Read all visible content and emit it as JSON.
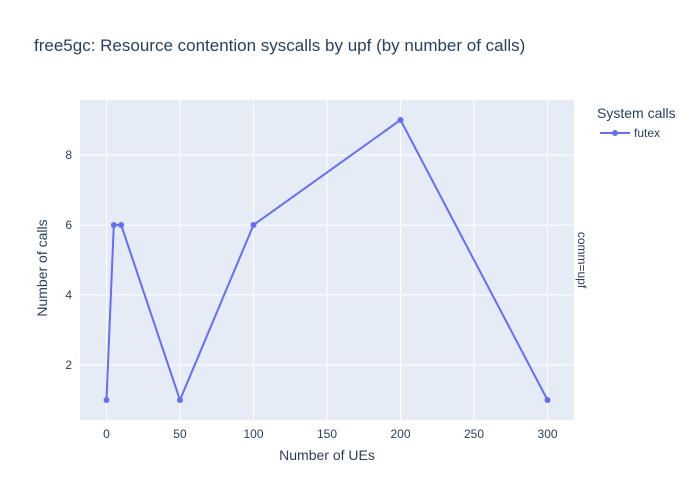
{
  "chart_data": {
    "type": "line",
    "title": "free5gc: Resource contention syscalls by upf (by number of calls)",
    "xlabel": "Number of UEs",
    "ylabel": "Number of calls",
    "facet_label": "comm=upf",
    "legend": {
      "title": "System calls",
      "placement": "top-right-outside"
    },
    "xlim": [
      -18,
      318
    ],
    "ylim": [
      0.43,
      9.57
    ],
    "x_ticks": [
      0,
      50,
      100,
      150,
      200,
      250,
      300
    ],
    "y_ticks": [
      2,
      4,
      6,
      8
    ],
    "grid": true,
    "colors": {
      "series": "#636efa",
      "plot_bg": "#e5ecf6",
      "grid": "#ffffff",
      "text": "#2a3f5f"
    },
    "series": [
      {
        "name": "futex",
        "x": [
          0,
          5,
          10,
          50,
          100,
          200,
          300
        ],
        "y": [
          1,
          6,
          6,
          1,
          6,
          9,
          1
        ]
      }
    ]
  }
}
